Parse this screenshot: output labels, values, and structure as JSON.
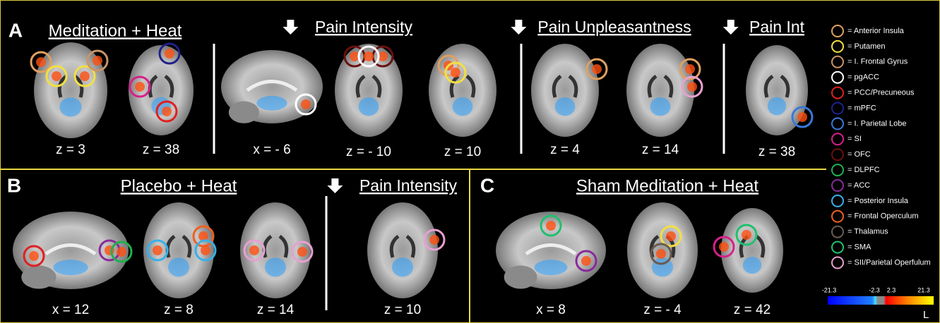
{
  "panels": [
    {
      "letter": "A",
      "title": "Meditation + Heat",
      "subtitles": [
        "Pain Intensity",
        "Pain Unpleasantness",
        "Pain Int"
      ],
      "slices": [
        "z = 3",
        "z = 38",
        "x = - 6",
        "z = - 10",
        "z = 10",
        "z = 4",
        "z = 14",
        "z = 38"
      ]
    },
    {
      "letter": "B",
      "title": "Placebo + Heat",
      "subtitles": [
        "Pain Intensity"
      ],
      "slices": [
        "x = 12",
        "z = 8",
        "z = 14",
        "z = 10"
      ]
    },
    {
      "letter": "C",
      "title": "Sham Meditation + Heat",
      "subtitles": [],
      "slices": [
        "x = 8",
        "z = - 4",
        "z = 42"
      ]
    }
  ],
  "legend": [
    {
      "label": "= Anterior Insula",
      "color": "#e0a060"
    },
    {
      "label": "= Putamen",
      "color": "#f2e040"
    },
    {
      "label": "= I. Frontal Gyrus",
      "color": "#c8946a"
    },
    {
      "label": "=  pgACC",
      "color": "#ffffff"
    },
    {
      "label": "= PCC/Precuneous",
      "color": "#e02020"
    },
    {
      "label": "= mPFC",
      "color": "#20208a"
    },
    {
      "label": "= I. Parietal Lobe",
      "color": "#3a78d8"
    },
    {
      "label": "= SI",
      "color": "#d8208a"
    },
    {
      "label": "= OFC",
      "color": "#6a1010"
    },
    {
      "label": "= DLPFC",
      "color": "#20b050"
    },
    {
      "label": "= ACC",
      "color": "#8a2a9a"
    },
    {
      "label": "= Posterior Insula",
      "color": "#38b0e8"
    },
    {
      "label": "= Frontal Operculum",
      "color": "#f06020"
    },
    {
      "label": "= Thalamus",
      "color": "#6a5a50"
    },
    {
      "label": "= SMA",
      "color": "#20c070"
    },
    {
      "label": "= SII/Parietal Operfulum",
      "color": "#e8a0d0"
    }
  ],
  "colorbar": {
    "labels": [
      "-21.3",
      "-2.3",
      "2.3",
      "21.3"
    ],
    "side": "L"
  }
}
